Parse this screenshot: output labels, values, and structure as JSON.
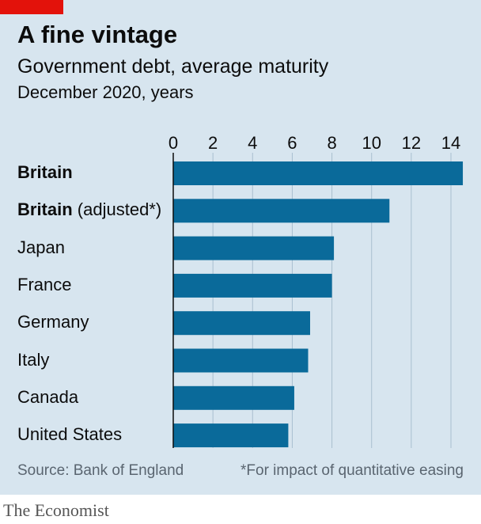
{
  "header": {
    "title": "A fine vintage",
    "subtitle": "Government debt, average maturity",
    "units": "December 2020, years"
  },
  "footer": {
    "source": "Source: Bank of England",
    "note": "*For impact of quantitative easing",
    "brand": "The Economist"
  },
  "colors": {
    "bar": "#0a6a9a",
    "background": "#d7e5ef",
    "accent": "#e3120b",
    "axis": "#0c0c0c",
    "grid": "#a9bfcf"
  },
  "chart_data": {
    "type": "bar",
    "orientation": "horizontal",
    "title": "A fine vintage",
    "subtitle": "Government debt, average maturity",
    "units": "December 2020, years",
    "categories": [
      {
        "bold": "Britain",
        "rest": ""
      },
      {
        "bold": "Britain",
        "rest": " (adjusted*)"
      },
      {
        "bold": "",
        "rest": "Japan"
      },
      {
        "bold": "",
        "rest": "France"
      },
      {
        "bold": "",
        "rest": "Germany"
      },
      {
        "bold": "",
        "rest": "Italy"
      },
      {
        "bold": "",
        "rest": "Canada"
      },
      {
        "bold": "",
        "rest": "United States"
      }
    ],
    "values": [
      14.6,
      10.9,
      8.1,
      8.0,
      6.9,
      6.8,
      6.1,
      5.8
    ],
    "xlim": [
      0,
      14
    ],
    "xticks": [
      "0",
      "2",
      "4",
      "6",
      "8",
      "10",
      "12",
      "14"
    ],
    "tick_position": "top",
    "grid": true
  }
}
